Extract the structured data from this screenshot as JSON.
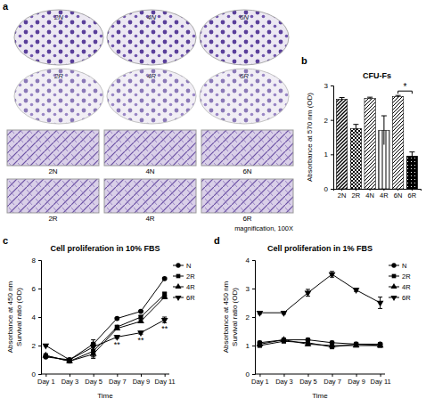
{
  "figure": {
    "panel": "a",
    "plate_labels": [
      "2N",
      "4N",
      "6N",
      "2R",
      "4R",
      "6R"
    ],
    "image_labels": [
      "2N",
      "4N",
      "6N",
      "2R",
      "4R",
      "6R"
    ],
    "note": "magnification, 100X"
  },
  "chart_data": [
    {
      "panel": "b",
      "type": "bar",
      "title": "CFU-Fs",
      "y_label": "Absorbance at 570 nm (OD)",
      "categories": [
        "2N",
        "2R",
        "4N",
        "4R",
        "6N",
        "6R"
      ],
      "values": [
        2.6,
        1.75,
        2.63,
        1.7,
        2.68,
        0.95
      ],
      "errors": [
        0.05,
        0.12,
        0.03,
        0.42,
        0.03,
        0.12
      ],
      "color": "#000000",
      "ylim": [
        0,
        3
      ],
      "yticks": [
        0,
        1,
        2,
        3
      ],
      "annotations": [
        {
          "text": "*",
          "categories": [
            "6N",
            "6R"
          ]
        }
      ]
    },
    {
      "panel": "c",
      "type": "line",
      "title": "Cell proliferation in 10% FBS",
      "y_label": [
        "Absorbance at 450 nm",
        "Survival ratio (OD)"
      ],
      "x_label": "Time",
      "categories": [
        "Day 1",
        "Day 3",
        "Day 5",
        "Day 7",
        "Day 9",
        "Day 11"
      ],
      "series": [
        {
          "name": "N",
          "color": "#000000",
          "marker": "circle",
          "values": [
            1.2,
            1.0,
            2.1,
            3.9,
            4.4,
            6.7
          ],
          "errors": [
            0.05,
            0.05,
            0.1,
            0.05,
            0.05,
            0.05
          ]
        },
        {
          "name": "2R",
          "color": "#000000",
          "marker": "square",
          "values": [
            1.3,
            0.9,
            1.6,
            3.3,
            4.0,
            5.6
          ],
          "errors": [
            0.05,
            0.05,
            0.4,
            0.1,
            0.1,
            0.15
          ]
        },
        {
          "name": "4R",
          "color": "#000000",
          "marker": "triangle-up",
          "values": [
            1.3,
            0.9,
            1.4,
            3.2,
            3.7,
            5.4
          ],
          "errors": [
            0.05,
            0.05,
            0.3,
            0.1,
            0.1,
            0.1
          ]
        },
        {
          "name": "6R",
          "color": "#000000",
          "marker": "triangle-down",
          "values": [
            2.0,
            1.0,
            1.9,
            2.6,
            2.9,
            3.8
          ],
          "errors": [
            0.05,
            0.05,
            0.5,
            0.1,
            0.1,
            0.2
          ]
        }
      ],
      "ylim": [
        0,
        8
      ],
      "yticks": [
        0,
        2,
        4,
        6,
        8
      ],
      "legend": "right",
      "annotations": [
        {
          "text": "**",
          "category": "Day 7"
        },
        {
          "text": "**",
          "category": "Day 9"
        },
        {
          "text": "**",
          "category": "Day 11"
        }
      ]
    },
    {
      "panel": "d",
      "type": "line",
      "title": "Cell proliferation in 1% FBS",
      "y_label": [
        "Absorbance at 450 nm",
        "Survival ratio (OD)"
      ],
      "x_label": "Time",
      "categories": [
        "Day 1",
        "Day 3",
        "Day 5",
        "Day 7",
        "Day 9",
        "Day 11"
      ],
      "series": [
        {
          "name": "N",
          "color": "#000000",
          "marker": "circle",
          "values": [
            1.1,
            1.2,
            1.2,
            1.1,
            1.05,
            1.05
          ],
          "errors": [
            0.05,
            0.05,
            0.05,
            0.05,
            0.05,
            0.05
          ]
        },
        {
          "name": "2R",
          "color": "#000000",
          "marker": "square",
          "values": [
            1.0,
            1.15,
            1.1,
            0.95,
            1.05,
            1.0
          ],
          "errors": [
            0.05,
            0.05,
            0.05,
            0.05,
            0.05,
            0.05
          ]
        },
        {
          "name": "4R",
          "color": "#000000",
          "marker": "triangle-up",
          "values": [
            1.05,
            1.2,
            1.05,
            1.0,
            1.0,
            1.0
          ],
          "errors": [
            0.05,
            0.05,
            0.05,
            0.05,
            0.05,
            0.05
          ]
        },
        {
          "name": "6R",
          "color": "#000000",
          "marker": "triangle-down",
          "values": [
            2.15,
            2.15,
            2.85,
            3.5,
            2.95,
            2.5
          ],
          "errors": [
            0.05,
            0.05,
            0.12,
            0.1,
            0.05,
            0.2
          ]
        }
      ],
      "ylim": [
        0,
        4
      ],
      "yticks": [
        0,
        1,
        2,
        3,
        4
      ],
      "legend": "right"
    }
  ]
}
